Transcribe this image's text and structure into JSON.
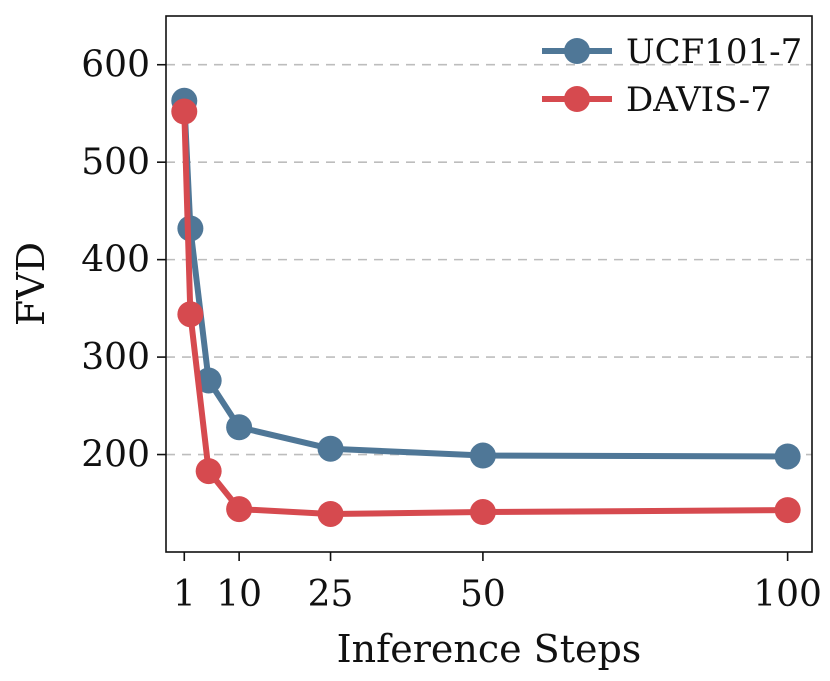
{
  "chart_data": {
    "type": "line",
    "title": "",
    "xlabel": "Inference Steps",
    "ylabel": "FVD",
    "xlim": [
      -2,
      104
    ],
    "ylim": [
      100,
      650
    ],
    "xticks": [
      1,
      10,
      25,
      50,
      100
    ],
    "yticks": [
      200,
      300,
      400,
      500,
      600
    ],
    "grid": "horizontal dashed",
    "legend_position": "top-right",
    "series": [
      {
        "name": "UCF101-7",
        "color": "#4f7797",
        "x": [
          1,
          2,
          5,
          10,
          25,
          50,
          100
        ],
        "y": [
          563,
          432,
          276,
          228,
          206,
          199,
          198
        ]
      },
      {
        "name": "DAVIS-7",
        "color": "#d64a4f",
        "x": [
          1,
          2,
          5,
          10,
          25,
          50,
          100
        ],
        "y": [
          552,
          344,
          183,
          144,
          139,
          141,
          143
        ]
      }
    ]
  }
}
